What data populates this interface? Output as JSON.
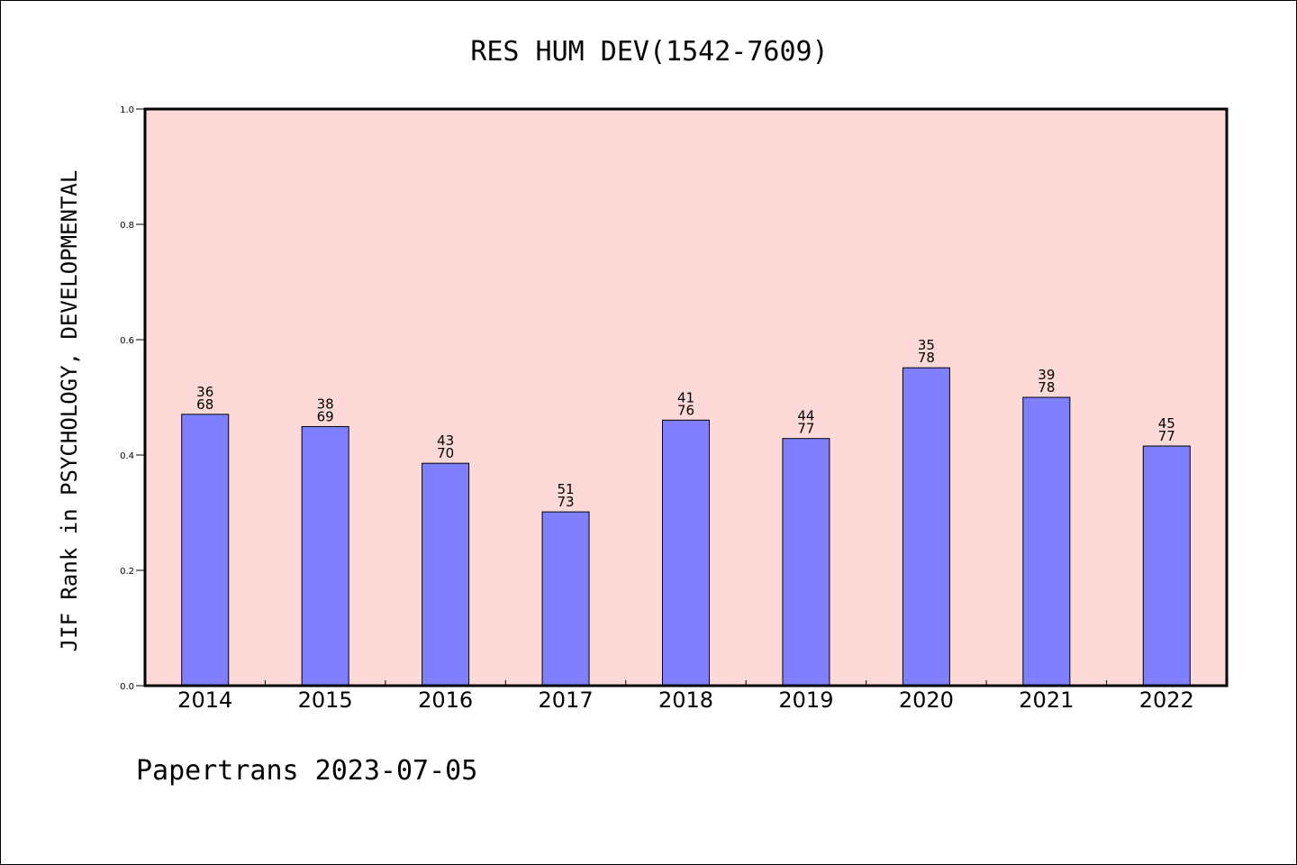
{
  "chart_data": {
    "type": "bar",
    "title": "RES HUM DEV(1542-7609)",
    "ylabel": "JIF Rank in PSYCHOLOGY, DEVELOPMENTAL",
    "xlabel": "",
    "ylim": [
      0,
      1.0
    ],
    "yticks": [
      "0.0",
      "0.2",
      "0.4",
      "0.6",
      "0.8",
      "1.0"
    ],
    "categories": [
      "2014",
      "2015",
      "2016",
      "2017",
      "2018",
      "2019",
      "2020",
      "2021",
      "2022"
    ],
    "values": [
      0.4706,
      0.4493,
      0.3857,
      0.3014,
      0.4605,
      0.4286,
      0.5513,
      0.5,
      0.4156
    ],
    "labels_top": [
      "36",
      "38",
      "43",
      "51",
      "41",
      "44",
      "35",
      "39",
      "45"
    ],
    "labels_bottom": [
      "68",
      "69",
      "70",
      "73",
      "76",
      "77",
      "78",
      "78",
      "77"
    ],
    "grid": false,
    "colors": {
      "bar": "#8080ff",
      "plot_bg": "#fddad7",
      "axis": "#000000"
    }
  },
  "footer": "Papertrans 2023-07-05"
}
